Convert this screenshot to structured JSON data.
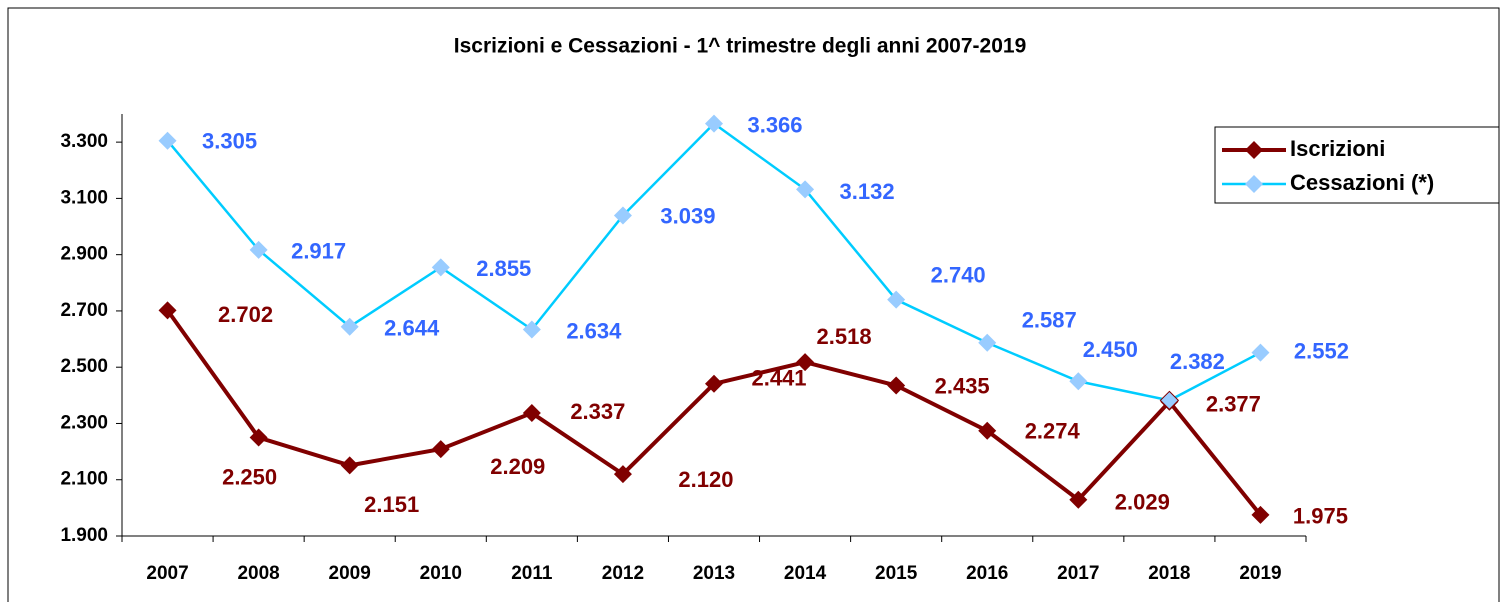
{
  "chart_data": {
    "type": "line",
    "title": "Iscrizioni e Cessazioni -  1^ trimestre degli anni 2007-2019",
    "categories": [
      "2007",
      "2008",
      "2009",
      "2010",
      "2011",
      "2012",
      "2013",
      "2014",
      "2015",
      "2016",
      "2017",
      "2018",
      "2019"
    ],
    "series": [
      {
        "name": "Iscrizioni",
        "color": "#800000",
        "marker_color": "#800000",
        "label_color": "#800000",
        "values": [
          2702,
          2250,
          2151,
          2209,
          2337,
          2120,
          2441,
          2518,
          2435,
          2274,
          2029,
          2377,
          1975
        ],
        "value_labels": [
          "2.702",
          "2.250",
          "2.151",
          "2.209",
          "2.337",
          "2.120",
          "2.441",
          "2.518",
          "2.435",
          "2.274",
          "2.029",
          "2.377",
          "1.975"
        ]
      },
      {
        "name": "Cessazioni (*)",
        "color": "#00ccff",
        "marker_color": "#99ccff",
        "label_color": "#3366ff",
        "values": [
          3305,
          2917,
          2644,
          2855,
          2634,
          3039,
          3366,
          3132,
          2740,
          2587,
          2450,
          2382,
          2552
        ],
        "value_labels": [
          "3.305",
          "2.917",
          "2.644",
          "2.855",
          "2.634",
          "3.039",
          "3.366",
          "3.132",
          "2.740",
          "2.587",
          "2.450",
          "2.382",
          "2.552"
        ]
      }
    ],
    "ylim": [
      1900,
      3400
    ],
    "yticks": [
      {
        "value": 1900,
        "label": "1.900"
      },
      {
        "value": 2100,
        "label": "2.100"
      },
      {
        "value": 2300,
        "label": "2.300"
      },
      {
        "value": 2500,
        "label": "2.500"
      },
      {
        "value": 2700,
        "label": "2.700"
      },
      {
        "value": 2900,
        "label": "2.900"
      },
      {
        "value": 3100,
        "label": "3.100"
      },
      {
        "value": 3300,
        "label": "3.300"
      }
    ],
    "grid": false,
    "legend": "upper right"
  }
}
